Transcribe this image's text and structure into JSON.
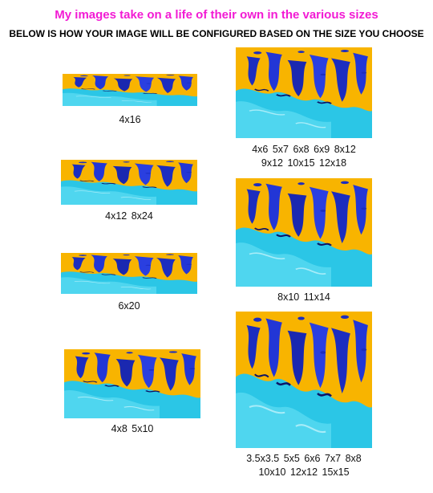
{
  "header": {
    "title": "My images take on a life of their own in the various sizes",
    "subtitle": "BELOW IS HOW YOUR IMAGE WILL BE CONFIGURED BASED ON THE SIZE YOU CHOOSE"
  },
  "colors": {
    "title": "#f21bd4",
    "yellow": "#f8b400",
    "cyan": "#2bc6e6",
    "blue": "#1c2dbf"
  },
  "panels": [
    {
      "name": "panel-4x16",
      "caption_lines": [
        "4x16"
      ]
    },
    {
      "name": "panel-4x6-group",
      "caption_lines": [
        "4x6   5x7   6x8   6x9   8x12",
        "9x12   10x15   12x18"
      ]
    },
    {
      "name": "panel-4x12-group",
      "caption_lines": [
        "4x12   8x24"
      ]
    },
    {
      "name": "panel-8x10-group",
      "caption_lines": [
        "8x10   11x14"
      ]
    },
    {
      "name": "panel-6x20",
      "caption_lines": [
        "6x20"
      ]
    },
    {
      "name": "panel-4x8-group",
      "caption_lines": [
        "4x8   5x10"
      ]
    },
    {
      "name": "panel-square-group",
      "caption_lines": [
        "3.5x3.5   5x5   6x6   7x7   8x8",
        "10x10   12x12   15x15"
      ]
    }
  ]
}
